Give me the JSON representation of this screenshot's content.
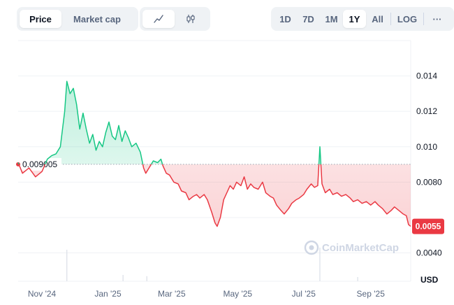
{
  "toolbar": {
    "price_label": "Price",
    "market_cap_label": "Market cap",
    "line_icon": "line-chart-icon",
    "candle_icon": "candlestick-icon",
    "ranges": [
      "1D",
      "7D",
      "1M",
      "1Y",
      "All"
    ],
    "active_range": "1Y",
    "log_label": "LOG",
    "more_label": "···"
  },
  "colors": {
    "up": "#16c784",
    "down": "#ea3943",
    "grid": "#eff2f5",
    "text": "#0d1421",
    "muted": "#58667e"
  },
  "watermark": "CoinMarketCap",
  "chart_data": {
    "type": "area",
    "currency_label": "USD",
    "reference_price": 0.009005,
    "reference_label": "0.009005",
    "current_price": 0.0055,
    "current_label": "0.0055",
    "ylim": [
      0.0024,
      0.016
    ],
    "yticks": [
      "0.0040",
      "0.0080",
      "0.010",
      "0.012",
      "0.014"
    ],
    "ytick_values": [
      0.004,
      0.008,
      0.01,
      0.012,
      0.014
    ],
    "hidden_tick_value": 0.006,
    "xticks": [
      "Nov '24",
      "Jan '25",
      "Mar '25",
      "May '25",
      "Jul '25",
      "Sep '25"
    ],
    "xtick_dates": [
      "2024-11-01",
      "2025-01-01",
      "2025-03-01",
      "2025-05-01",
      "2025-07-01",
      "2025-09-01"
    ],
    "xlim": [
      "2024-10-10",
      "2025-10-08"
    ],
    "points": [
      [
        "2024-10-10",
        0.0091
      ],
      [
        "2024-10-14",
        0.0085
      ],
      [
        "2024-10-20",
        0.0088
      ],
      [
        "2024-10-26",
        0.0083
      ],
      [
        "2024-11-01",
        0.0086
      ],
      [
        "2024-11-06",
        0.0093
      ],
      [
        "2024-11-10",
        0.0095
      ],
      [
        "2024-11-14",
        0.0096
      ],
      [
        "2024-11-18",
        0.01
      ],
      [
        "2024-11-22",
        0.012
      ],
      [
        "2024-11-24",
        0.0137
      ],
      [
        "2024-11-27",
        0.013
      ],
      [
        "2024-11-30",
        0.0133
      ],
      [
        "2024-12-03",
        0.0124
      ],
      [
        "2024-12-06",
        0.011
      ],
      [
        "2024-12-09",
        0.0119
      ],
      [
        "2024-12-12",
        0.011
      ],
      [
        "2024-12-15",
        0.0102
      ],
      [
        "2024-12-18",
        0.0107
      ],
      [
        "2024-12-21",
        0.0098
      ],
      [
        "2024-12-24",
        0.0103
      ],
      [
        "2024-12-27",
        0.01
      ],
      [
        "2024-12-30",
        0.0108
      ],
      [
        "2025-01-02",
        0.0114
      ],
      [
        "2025-01-05",
        0.0106
      ],
      [
        "2025-01-08",
        0.0104
      ],
      [
        "2025-01-11",
        0.0112
      ],
      [
        "2025-01-14",
        0.0103
      ],
      [
        "2025-01-17",
        0.0109
      ],
      [
        "2025-01-20",
        0.0105
      ],
      [
        "2025-01-23",
        0.01
      ],
      [
        "2025-01-27",
        0.0102
      ],
      [
        "2025-01-31",
        0.0097
      ],
      [
        "2025-02-03",
        0.0088
      ],
      [
        "2025-02-05",
        0.0085
      ],
      [
        "2025-02-08",
        0.0088
      ],
      [
        "2025-02-12",
        0.0092
      ],
      [
        "2025-02-16",
        0.0091
      ],
      [
        "2025-02-19",
        0.0093
      ],
      [
        "2025-02-21",
        0.0089
      ],
      [
        "2025-02-24",
        0.0085
      ],
      [
        "2025-02-27",
        0.0084
      ],
      [
        "2025-03-03",
        0.008
      ],
      [
        "2025-03-07",
        0.0079
      ],
      [
        "2025-03-10",
        0.0075
      ],
      [
        "2025-03-14",
        0.0074
      ],
      [
        "2025-03-17",
        0.007
      ],
      [
        "2025-03-21",
        0.0072
      ],
      [
        "2025-03-24",
        0.0073
      ],
      [
        "2025-03-27",
        0.0071
      ],
      [
        "2025-03-31",
        0.0073
      ],
      [
        "2025-04-03",
        0.007
      ],
      [
        "2025-04-07",
        0.0063
      ],
      [
        "2025-04-10",
        0.0057
      ],
      [
        "2025-04-12",
        0.0055
      ],
      [
        "2025-04-15",
        0.006
      ],
      [
        "2025-04-18",
        0.007
      ],
      [
        "2025-04-21",
        0.0074
      ],
      [
        "2025-04-24",
        0.0078
      ],
      [
        "2025-04-27",
        0.0076
      ],
      [
        "2025-04-30",
        0.008
      ],
      [
        "2025-05-04",
        0.0078
      ],
      [
        "2025-05-07",
        0.0083
      ],
      [
        "2025-05-10",
        0.0076
      ],
      [
        "2025-05-13",
        0.0079
      ],
      [
        "2025-05-16",
        0.0077
      ],
      [
        "2025-05-20",
        0.0076
      ],
      [
        "2025-05-24",
        0.008
      ],
      [
        "2025-05-27",
        0.0074
      ],
      [
        "2025-05-31",
        0.0072
      ],
      [
        "2025-06-03",
        0.0071
      ],
      [
        "2025-06-06",
        0.0067
      ],
      [
        "2025-06-10",
        0.0064
      ],
      [
        "2025-06-13",
        0.0062
      ],
      [
        "2025-06-17",
        0.0065
      ],
      [
        "2025-06-20",
        0.0068
      ],
      [
        "2025-06-24",
        0.007
      ],
      [
        "2025-06-27",
        0.0071
      ],
      [
        "2025-07-01",
        0.0073
      ],
      [
        "2025-07-04",
        0.0076
      ],
      [
        "2025-07-08",
        0.0079
      ],
      [
        "2025-07-11",
        0.0077
      ],
      [
        "2025-07-14",
        0.0078
      ],
      [
        "2025-07-16",
        0.01
      ],
      [
        "2025-07-18",
        0.0079
      ],
      [
        "2025-07-21",
        0.0074
      ],
      [
        "2025-07-25",
        0.0076
      ],
      [
        "2025-07-28",
        0.0073
      ],
      [
        "2025-08-01",
        0.0074
      ],
      [
        "2025-08-05",
        0.0072
      ],
      [
        "2025-08-09",
        0.0073
      ],
      [
        "2025-08-13",
        0.0071
      ],
      [
        "2025-08-16",
        0.0069
      ],
      [
        "2025-08-20",
        0.007
      ],
      [
        "2025-08-24",
        0.0068
      ],
      [
        "2025-08-28",
        0.0069
      ],
      [
        "2025-09-01",
        0.0067
      ],
      [
        "2025-09-05",
        0.0069
      ],
      [
        "2025-09-08",
        0.0067
      ],
      [
        "2025-09-12",
        0.0065
      ],
      [
        "2025-09-16",
        0.0062
      ],
      [
        "2025-09-20",
        0.0064
      ],
      [
        "2025-09-23",
        0.0066
      ],
      [
        "2025-09-27",
        0.0064
      ],
      [
        "2025-10-01",
        0.0062
      ],
      [
        "2025-10-04",
        0.0061
      ],
      [
        "2025-10-06",
        0.0056
      ],
      [
        "2025-10-08",
        0.0055
      ]
    ],
    "volume_spikes": [
      {
        "date": "2024-11-24",
        "level": 0.75
      },
      {
        "date": "2025-01-15",
        "level": 0.15
      },
      {
        "date": "2025-02-06",
        "level": 0.12
      },
      {
        "date": "2025-07-16",
        "level": 0.8
      },
      {
        "date": "2025-08-20",
        "level": 0.1
      }
    ]
  }
}
